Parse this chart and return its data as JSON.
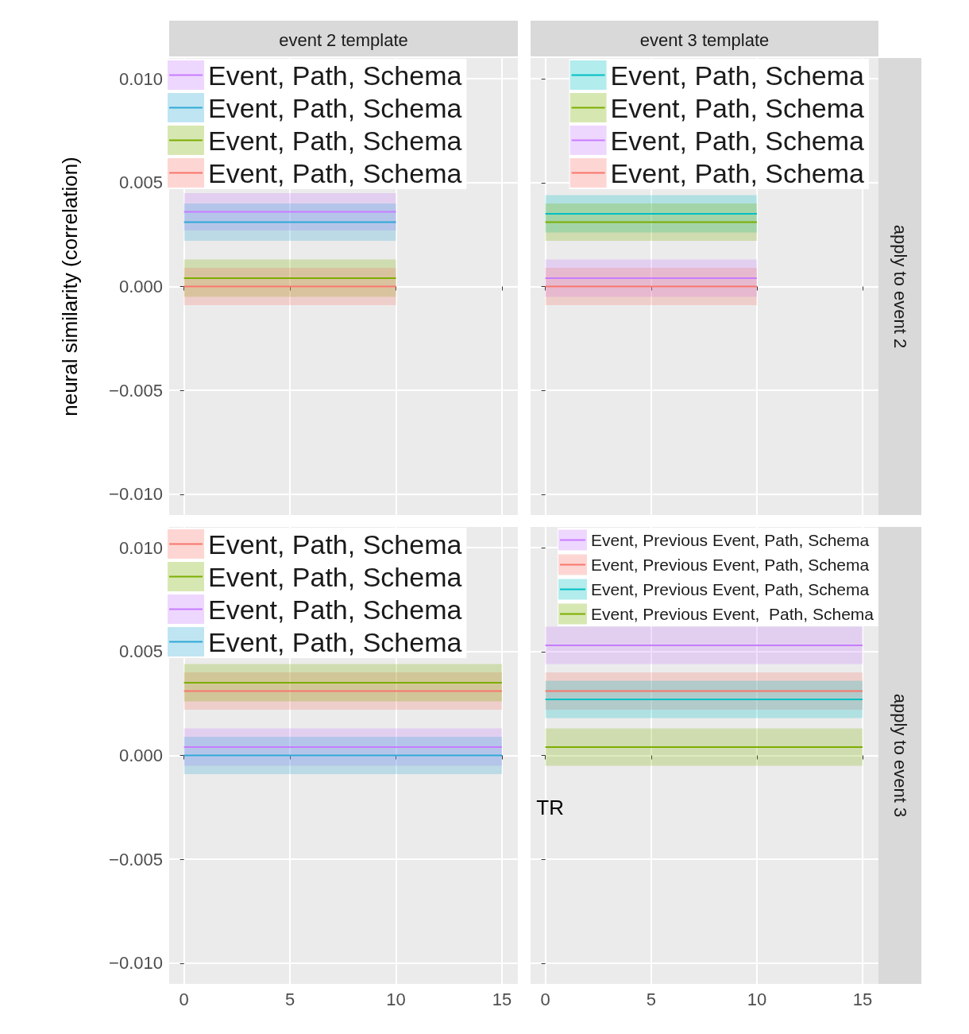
{
  "chart_data": [
    {
      "type": "line",
      "title": "event 2 template",
      "ylabel": "neural similarity (correlation)",
      "x": [
        0,
        10
      ],
      "xlim": [
        -0.7,
        15.75
      ],
      "ylim": [
        -0.011,
        0.011
      ],
      "xticks": [
        0,
        5,
        10,
        15
      ],
      "yticks": [
        {
          "value": -0.01,
          "label": "−0.010"
        },
        {
          "value": -0.005,
          "label": "−0.005"
        },
        {
          "value": 0,
          "label": "0.000"
        },
        {
          "value": 0.005,
          "label": "0.005"
        },
        {
          "value": 0.01,
          "label": "0.010"
        }
      ],
      "grid": true,
      "legend": "top left",
      "tick_labels": "y",
      "marker": "none",
      "line_style": "solid",
      "series": [
        {
          "name": "Event, Path, Schema",
          "color": "#c77cff",
          "values": [
            0.0036,
            0.0036
          ],
          "lower": [
            0.0027,
            0.0027
          ],
          "upper": [
            0.0045,
            0.0045
          ]
        },
        {
          "name": "Event, Path, Schema",
          "color": "#2fa8d5",
          "values": [
            0.0031,
            0.0031
          ],
          "lower": [
            0.0022,
            0.0022
          ],
          "upper": [
            0.004,
            0.004
          ]
        },
        {
          "name": "Event, Path, Schema",
          "color": "#7cae00",
          "values": [
            0.0004,
            0.0004
          ],
          "lower": [
            -0.0005,
            -0.0005
          ],
          "upper": [
            0.0013,
            0.0013
          ]
        },
        {
          "name": "Event, Path, Schema",
          "color": "#f8766d",
          "values": [
            0,
            0
          ],
          "lower": [
            -0.0009,
            -0.0009
          ],
          "upper": [
            0.0009,
            0.0009
          ]
        }
      ]
    },
    {
      "type": "line",
      "title": "event 3 template",
      "annotations": [
        "apply to event 2"
      ],
      "x": [
        0,
        10
      ],
      "xlim": [
        -0.7,
        15.75
      ],
      "ylim": [
        -0.011,
        0.011
      ],
      "xticks": [
        0,
        5,
        10,
        15
      ],
      "yticks": [
        -0.01,
        -0.005,
        0,
        0.005,
        0.01
      ],
      "grid": true,
      "legend": "top right",
      "tick_labels": false,
      "marker": "none",
      "line_style": "solid",
      "series": [
        {
          "name": "Event, Path, Schema",
          "color": "#00bfc4",
          "values": [
            0.0035,
            0.0035
          ],
          "lower": [
            0.0026,
            0.0026
          ],
          "upper": [
            0.0044,
            0.0044
          ]
        },
        {
          "name": "Event, Path, Schema",
          "color": "#7cae00",
          "values": [
            0.0031,
            0.0031
          ],
          "lower": [
            0.0022,
            0.0022
          ],
          "upper": [
            0.004,
            0.004
          ]
        },
        {
          "name": "Event, Path, Schema",
          "color": "#c77cff",
          "values": [
            0.0004,
            0.0004
          ],
          "lower": [
            -0.0005,
            -0.0005
          ],
          "upper": [
            0.0013,
            0.0013
          ]
        },
        {
          "name": "Event, Path, Schema",
          "color": "#f8766d",
          "values": [
            0,
            0
          ],
          "lower": [
            -0.0009,
            -0.0009
          ],
          "upper": [
            0.0009,
            0.0009
          ]
        }
      ]
    },
    {
      "type": "line",
      "x": [
        0,
        15
      ],
      "xlim": [
        -0.7,
        15.75
      ],
      "ylim": [
        -0.011,
        0.011
      ],
      "xticks": [
        0,
        5,
        10,
        15
      ],
      "yticks": [
        {
          "value": -0.01,
          "label": "−0.010"
        },
        {
          "value": -0.005,
          "label": "−0.005"
        },
        {
          "value": 0,
          "label": "0.000"
        },
        {
          "value": 0.005,
          "label": "0.005"
        },
        {
          "value": 0.01,
          "label": "0.010"
        }
      ],
      "grid": true,
      "legend": "top left",
      "marker": "none",
      "line_style": "solid",
      "series": [
        {
          "name": "Event, Path, Schema",
          "color": "#f8766d",
          "values": [
            0.0031,
            0.0031
          ],
          "lower": [
            0.0022,
            0.0022
          ],
          "upper": [
            0.004,
            0.004
          ]
        },
        {
          "name": "Event, Path, Schema",
          "color": "#7cae00",
          "values": [
            0.0035,
            0.0035
          ],
          "lower": [
            0.0026,
            0.0026
          ],
          "upper": [
            0.0044,
            0.0044
          ]
        },
        {
          "name": "Event, Path, Schema",
          "color": "#c77cff",
          "values": [
            0.0004,
            0.0004
          ],
          "lower": [
            -0.0005,
            -0.0005
          ],
          "upper": [
            0.0013,
            0.0013
          ]
        },
        {
          "name": "Event, Path, Schema",
          "color": "#2fa8d5",
          "values": [
            0,
            0
          ],
          "lower": [
            -0.0009,
            -0.0009
          ],
          "upper": [
            0.0009,
            0.0009
          ]
        }
      ]
    },
    {
      "type": "line",
      "xlabel": "TR",
      "annotations": [
        "apply to event 3"
      ],
      "x": [
        0,
        15
      ],
      "xlim": [
        -0.7,
        15.75
      ],
      "ylim": [
        -0.011,
        0.011
      ],
      "xticks": [
        0,
        5,
        10,
        15
      ],
      "yticks": [
        -0.01,
        -0.005,
        0,
        0.005,
        0.01
      ],
      "grid": true,
      "legend": "top right",
      "tick_labels": "x",
      "marker": "none",
      "line_style": "solid",
      "series": [
        {
          "name": "Event, Previous Event, Path, Schema",
          "color": "#c77cff",
          "values": [
            0.0053,
            0.0053
          ],
          "lower": [
            0.0044,
            0.0044
          ],
          "upper": [
            0.0062,
            0.0062
          ]
        },
        {
          "name": "Event, Previous Event, Path, Schema",
          "color": "#f8766d",
          "values": [
            0.0031,
            0.0031
          ],
          "lower": [
            0.0022,
            0.0022
          ],
          "upper": [
            0.004,
            0.004
          ]
        },
        {
          "name": "Event, Previous Event, Path, Schema",
          "color": "#00bfc4",
          "values": [
            0.0027,
            0.0027
          ],
          "lower": [
            0.0018,
            0.0018
          ],
          "upper": [
            0.0036,
            0.0036
          ]
        },
        {
          "name": "Event, Previous Event,  Path, Schema",
          "color": "#7cae00",
          "values": [
            0.0004,
            0.0004
          ],
          "lower": [
            -0.0005,
            -0.0005
          ],
          "upper": [
            0.0013,
            0.0013
          ]
        }
      ]
    }
  ]
}
